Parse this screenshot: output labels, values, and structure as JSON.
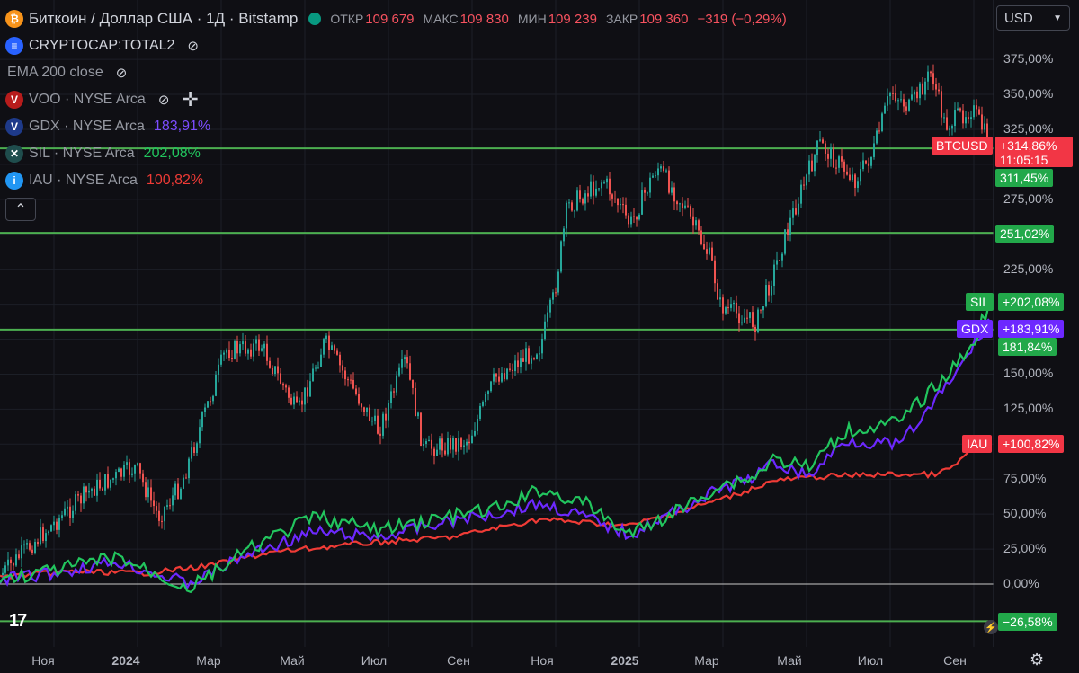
{
  "header": {
    "main_title": "Биткоин / Доллар США · 1Д · Bitstamp",
    "ohlc": [
      {
        "key": "ОТКР",
        "value": "109 679"
      },
      {
        "key": "МАКС",
        "value": "109 830"
      },
      {
        "key": "МИН",
        "value": "109 239"
      },
      {
        "key": "ЗАКР",
        "value": "109 360"
      }
    ],
    "change": "−319 (−0,29%)"
  },
  "legend": {
    "total2": "CRYPTOCAP:TOTAL2",
    "ema": "EMA 200 close",
    "voo": "VOO · NYSE Arca",
    "gdx": "GDX · NYSE Arca",
    "gdx_value": "183,91%",
    "sil": "SIL · NYSE Arca",
    "sil_value": "202,08%",
    "iau": "IAU · NYSE Arca",
    "iau_value": "100,82%"
  },
  "currency": "USD",
  "y_axis_labels": [
    "375,00%",
    "350,00%",
    "325,00%",
    "275,00%",
    "225,00%",
    "150,00%",
    "125,00%",
    "75,00%",
    "50,00%",
    "25,00%",
    "0,00%"
  ],
  "x_axis_labels": [
    "Ноя",
    "2024",
    "Мар",
    "Май",
    "Июл",
    "Сен",
    "Ноя",
    "2025",
    "Мар",
    "Май",
    "Июл",
    "Сен"
  ],
  "tags": {
    "btc_name": "BTCUSD",
    "btc_value": "+314,86%",
    "btc_time": "11:05:15",
    "h311": "311,45%",
    "h251": "251,02%",
    "sil_name": "SIL",
    "sil_value": "+202,08%",
    "gdx_name": "GDX",
    "gdx_value": "+183,91%",
    "h181": "181,84%",
    "iau_name": "IAU",
    "iau_value": "+100,82%",
    "h_neg": "−26,58%"
  },
  "colors": {
    "btc_up": "#26a69a",
    "btc_down": "#ef5350",
    "sil": "#22c55e",
    "gdx": "#6d28ff",
    "iau": "#ef3b36",
    "hline": "#4caf50"
  },
  "horizontal_levels_pct": [
    311.45,
    251.02,
    181.84,
    -26.58
  ]
}
